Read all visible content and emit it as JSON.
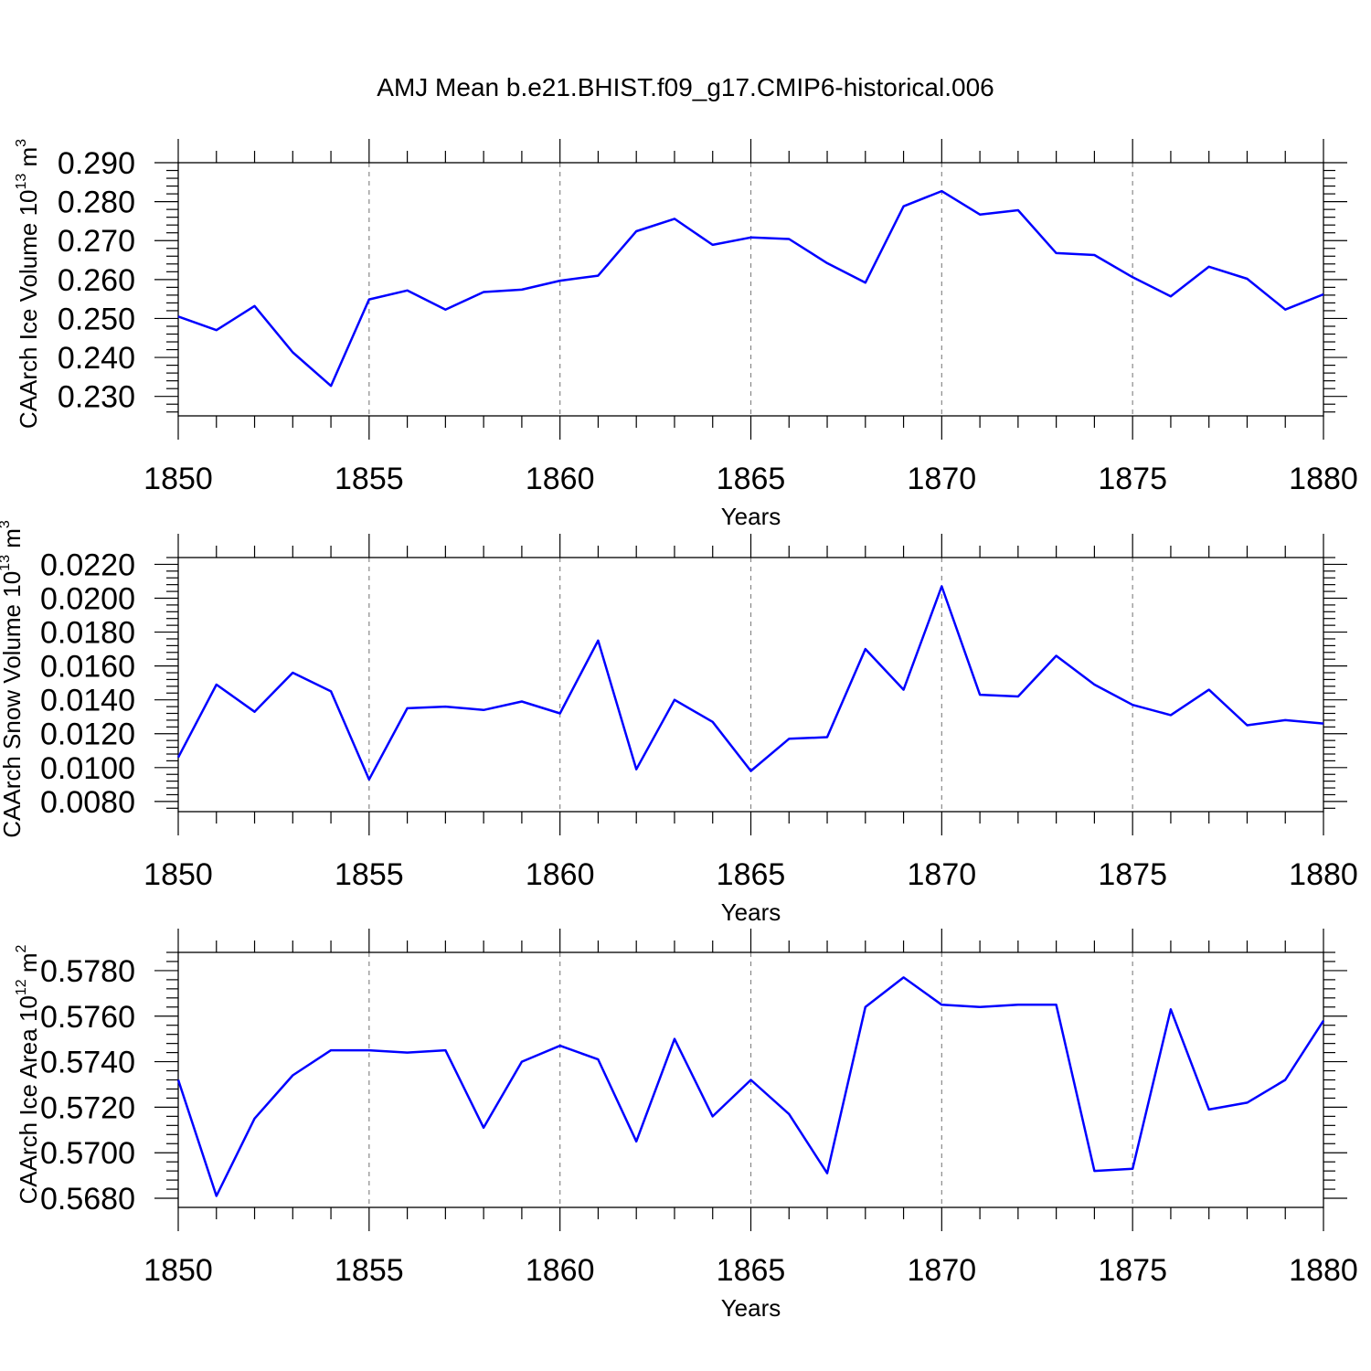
{
  "figure_title": "AMJ Mean b.e21.BHIST.f09_g17.CMIP6-historical.006",
  "chart_data": [
    {
      "type": "line",
      "ylabel": "CAArch Ice Volume 10",
      "ylabel_exp": "13",
      "ylabel_unit": " m",
      "ylabel_unit_exp": "3",
      "xlabel": "Years",
      "xlim": [
        1850,
        1880
      ],
      "ylim": [
        0.225,
        0.29
      ],
      "xticks": [
        "1850",
        "1855",
        "1860",
        "1865",
        "1870",
        "1875",
        "1880"
      ],
      "yticks": [
        "0.230",
        "0.240",
        "0.250",
        "0.260",
        "0.270",
        "0.280",
        "0.290"
      ],
      "grid_x": true,
      "x": [
        1850,
        1851,
        1852,
        1853,
        1854,
        1855,
        1856,
        1857,
        1858,
        1859,
        1860,
        1861,
        1862,
        1863,
        1864,
        1865,
        1866,
        1867,
        1868,
        1869,
        1870,
        1871,
        1872,
        1873,
        1874,
        1875,
        1876,
        1877,
        1878,
        1879,
        1880
      ],
      "values": [
        0.2505,
        0.247,
        0.2532,
        0.2413,
        0.2327,
        0.2549,
        0.2572,
        0.2523,
        0.2568,
        0.2574,
        0.2597,
        0.261,
        0.2724,
        0.2756,
        0.2689,
        0.2708,
        0.2704,
        0.2642,
        0.2592,
        0.2788,
        0.2827,
        0.2767,
        0.2778,
        0.2668,
        0.2663,
        0.2606,
        0.2557,
        0.2633,
        0.2602,
        0.2523,
        0.2562
      ]
    },
    {
      "type": "line",
      "ylabel": "CAArch Snow Volume 10",
      "ylabel_exp": "13",
      "ylabel_unit": " m",
      "ylabel_unit_exp": "3",
      "xlabel": "Years",
      "xlim": [
        1850,
        1880
      ],
      "ylim": [
        0.0074,
        0.0224
      ],
      "xticks": [
        "1850",
        "1855",
        "1860",
        "1865",
        "1870",
        "1875",
        "1880"
      ],
      "yticks": [
        "0.0080",
        "0.0100",
        "0.0120",
        "0.0140",
        "0.0160",
        "0.0180",
        "0.0200",
        "0.0220"
      ],
      "grid_x": true,
      "x": [
        1850,
        1851,
        1852,
        1853,
        1854,
        1855,
        1856,
        1857,
        1858,
        1859,
        1860,
        1861,
        1862,
        1863,
        1864,
        1865,
        1866,
        1867,
        1868,
        1869,
        1870,
        1871,
        1872,
        1873,
        1874,
        1875,
        1876,
        1877,
        1878,
        1879,
        1880
      ],
      "values": [
        0.0106,
        0.0149,
        0.0133,
        0.0156,
        0.0145,
        0.0093,
        0.0135,
        0.0136,
        0.0134,
        0.0139,
        0.0132,
        0.0175,
        0.0099,
        0.014,
        0.0127,
        0.0098,
        0.0117,
        0.0118,
        0.017,
        0.0146,
        0.0207,
        0.0143,
        0.0142,
        0.0166,
        0.0149,
        0.0137,
        0.0131,
        0.0146,
        0.0125,
        0.0128,
        0.0126
      ]
    },
    {
      "type": "line",
      "ylabel": "CAArch Ice Area 10",
      "ylabel_exp": "12",
      "ylabel_unit": " m",
      "ylabel_unit_exp": "2",
      "xlabel": "Years",
      "xlim": [
        1850,
        1880
      ],
      "ylim": [
        0.5676,
        0.5788
      ],
      "xticks": [
        "1850",
        "1855",
        "1860",
        "1865",
        "1870",
        "1875",
        "1880"
      ],
      "yticks": [
        "0.5680",
        "0.5700",
        "0.5720",
        "0.5740",
        "0.5760",
        "0.5780"
      ],
      "grid_x": true,
      "x": [
        1850,
        1851,
        1852,
        1853,
        1854,
        1855,
        1856,
        1857,
        1858,
        1859,
        1860,
        1861,
        1862,
        1863,
        1864,
        1865,
        1866,
        1867,
        1868,
        1869,
        1870,
        1871,
        1872,
        1873,
        1874,
        1875,
        1876,
        1877,
        1878,
        1879,
        1880
      ],
      "values": [
        0.5732,
        0.5681,
        0.5715,
        0.5734,
        0.5745,
        0.5745,
        0.5744,
        0.5745,
        0.5711,
        0.574,
        0.5747,
        0.5741,
        0.5705,
        0.575,
        0.5716,
        0.5732,
        0.5717,
        0.5691,
        0.5764,
        0.5777,
        0.5765,
        0.5764,
        0.5765,
        0.5765,
        0.5692,
        0.5693,
        0.5763,
        0.5719,
        0.5722,
        0.5732,
        0.5758
      ]
    }
  ]
}
